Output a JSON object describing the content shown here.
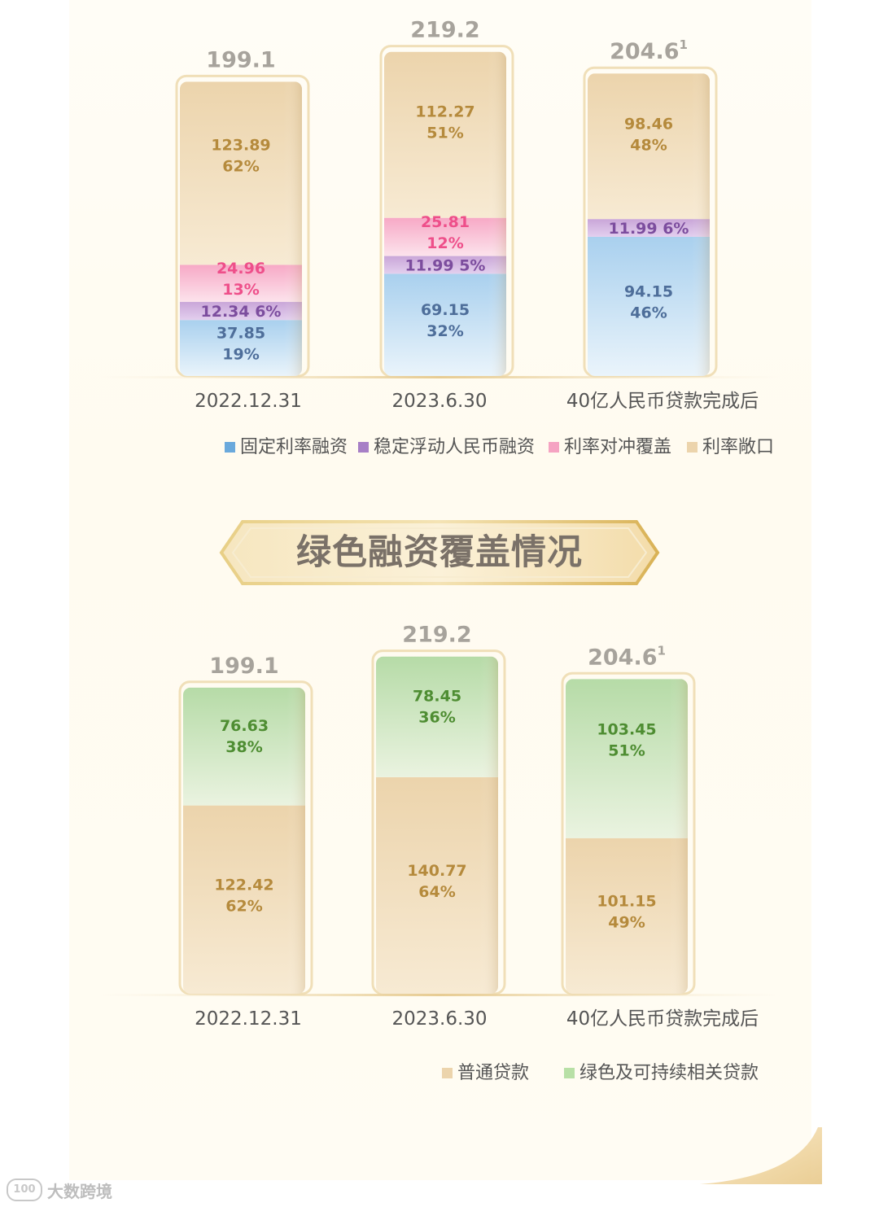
{
  "colors": {
    "fixed": "#bcdcf2",
    "stable": "#c9a9d9",
    "hedge": "#f8b9cf",
    "exposure": "#efd9b5",
    "ordinary": "#efd9b5",
    "green": "#bfe0b2",
    "gold": "#e5c77d",
    "label_fixed": "#4e6e9a",
    "label_stable": "#7c4d9e",
    "label_hedge": "#ee4f8a",
    "label_exposure": "#b58a3c",
    "label_green": "#4e8d32"
  },
  "banner": {
    "title": "绿色融资覆盖情况"
  },
  "watermark": {
    "logo": "100",
    "text": "大数跨境"
  },
  "chart_data": [
    {
      "type": "bar",
      "stacked": true,
      "categories": [
        "2022.12.31",
        "2023.6.30",
        "40亿人民币贷款完成后"
      ],
      "totals": [
        "199.1",
        "219.2",
        "204.6"
      ],
      "total_sup": [
        "",
        "",
        "1"
      ],
      "series": [
        {
          "name": "固定利率融资",
          "key": "fixed",
          "values": [
            37.85,
            69.15,
            94.15
          ],
          "pct": [
            "19%",
            "32%",
            "46%"
          ],
          "value_labels": [
            "37.85",
            "69.15",
            "94.15"
          ]
        },
        {
          "name": "稳定浮动人民币融资",
          "key": "stable",
          "values": [
            12.34,
            11.99,
            11.99
          ],
          "pct": [
            "6%",
            "5%",
            "6%"
          ],
          "value_labels": [
            "12.34",
            "11.99",
            "11.99"
          ]
        },
        {
          "name": "利率对冲覆盖",
          "key": "hedge",
          "values": [
            24.96,
            25.81,
            0
          ],
          "pct": [
            "13%",
            "12%",
            ""
          ],
          "value_labels": [
            "24.96",
            "25.81",
            ""
          ]
        },
        {
          "name": "利率敞口",
          "key": "exposure",
          "values": [
            123.89,
            112.27,
            98.46
          ],
          "pct": [
            "62%",
            "51%",
            "48%"
          ],
          "value_labels": [
            "123.89",
            "112.27",
            "98.46"
          ]
        }
      ],
      "legend": [
        "固定利率融资",
        "稳定浮动人民币融资",
        "利率对冲覆盖",
        "利率敞口"
      ]
    },
    {
      "type": "bar",
      "stacked": true,
      "categories": [
        "2022.12.31",
        "2023.6.30",
        "40亿人民币贷款完成后"
      ],
      "totals": [
        "199.1",
        "219.2",
        "204.6"
      ],
      "total_sup": [
        "",
        "",
        "1"
      ],
      "series": [
        {
          "name": "普通贷款",
          "key": "ordinary",
          "values": [
            122.42,
            140.77,
            101.15
          ],
          "pct": [
            "62%",
            "64%",
            "49%"
          ],
          "value_labels": [
            "122.42",
            "140.77",
            "101.15"
          ]
        },
        {
          "name": "绿色及可持续相关贷款",
          "key": "green",
          "values": [
            76.63,
            78.45,
            103.45
          ],
          "pct": [
            "38%",
            "36%",
            "51%"
          ],
          "value_labels": [
            "76.63",
            "78.45",
            "103.45"
          ]
        }
      ],
      "legend": [
        "普通贷款",
        "绿色及可持续相关贷款"
      ]
    }
  ]
}
